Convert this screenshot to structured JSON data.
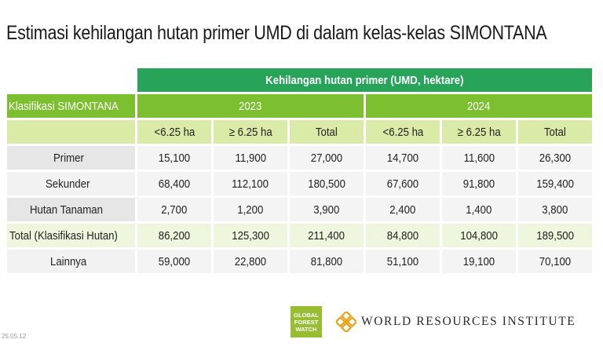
{
  "title": "Estimasi kehilangan hutan primer UMD di dalam kelas-kelas SIMONTANA",
  "table": {
    "main_header": "Kehilangan hutan primer (UMD, hektare)",
    "row_header_label": "Klasifikasi SIMONTANA",
    "years": [
      "2023",
      "2024"
    ],
    "subheaders": [
      "<6.25 ha",
      "≥ 6.25 ha",
      "Total",
      "<6.25 ha",
      "≥ 6.25 ha",
      "Total"
    ],
    "rows": [
      {
        "label": "Primer",
        "values": [
          "15,100",
          "11,900",
          "27,000",
          "14,700",
          "11,600",
          "26,300"
        ]
      },
      {
        "label": "Sekunder",
        "values": [
          "68,400",
          "112,100",
          "180,500",
          "67,600",
          "91,800",
          "159,400"
        ]
      },
      {
        "label": "Hutan Tanaman",
        "values": [
          "2,700",
          "1,200",
          "3,900",
          "2,400",
          "1,400",
          "3,800"
        ]
      },
      {
        "label": "Total (Klasifikasi Hutan)",
        "values": [
          "86,200",
          "125,300",
          "211,400",
          "84,800",
          "104,800",
          "189,500"
        ]
      },
      {
        "label": "Lainnya",
        "values": [
          "59,000",
          "22,800",
          "81,800",
          "51,100",
          "19,100",
          "70,100"
        ]
      }
    ]
  },
  "version": "25.05.12",
  "logos": {
    "gfw": {
      "line1": "GLOBAL",
      "line2": "FOREST",
      "line3": "WATCH"
    },
    "wri": "WORLD RESOURCES INSTITUTE"
  },
  "colors": {
    "dark_green": "#27a35a",
    "mid_green": "#7cbf2f",
    "light_green": "#d9eba7",
    "gfw_green": "#97be32",
    "wri_gold": "#e8a317"
  }
}
